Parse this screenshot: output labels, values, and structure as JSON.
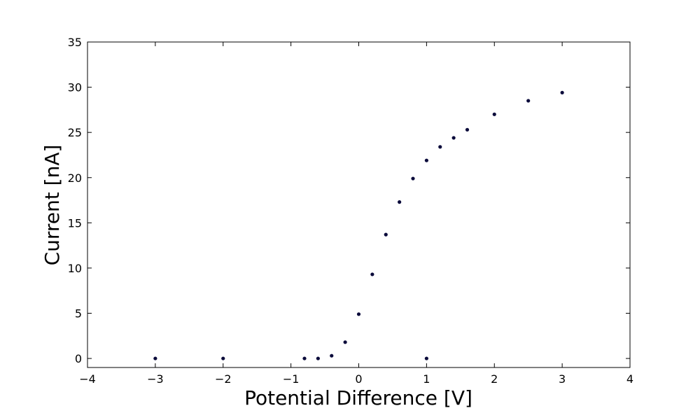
{
  "chart_data": {
    "type": "scatter",
    "title": "",
    "xlabel": "Potential Difference [V]",
    "ylabel": "Current [nA]",
    "xlim": [
      -4,
      4
    ],
    "ylim": [
      -1,
      35
    ],
    "xticks": [
      -4,
      -3,
      -2,
      -1,
      0,
      1,
      2,
      3,
      4
    ],
    "xtick_labels": [
      "−4",
      "−3",
      "−2",
      "−1",
      "0",
      "1",
      "2",
      "3",
      "4"
    ],
    "yticks": [
      0,
      5,
      10,
      15,
      20,
      25,
      30,
      35
    ],
    "ytick_labels": [
      "0",
      "5",
      "10",
      "15",
      "20",
      "25",
      "30",
      "35"
    ],
    "grid": false,
    "legend": "none",
    "marker_color": "#0b0b3b",
    "series": [
      {
        "x": [
          -3,
          -2,
          -0.8,
          -0.6,
          -0.4,
          -0.2,
          0,
          0.2,
          0.4,
          0.6,
          0.8,
          1.0,
          1.0,
          1.2,
          1.4,
          1.6,
          2.0,
          2.5,
          3.0
        ],
        "y": [
          0,
          0,
          0,
          0,
          0.3,
          1.8,
          4.9,
          9.3,
          13.7,
          17.3,
          19.9,
          21.9,
          0,
          23.4,
          24.4,
          25.3,
          27.0,
          28.5,
          29.4
        ]
      }
    ]
  }
}
